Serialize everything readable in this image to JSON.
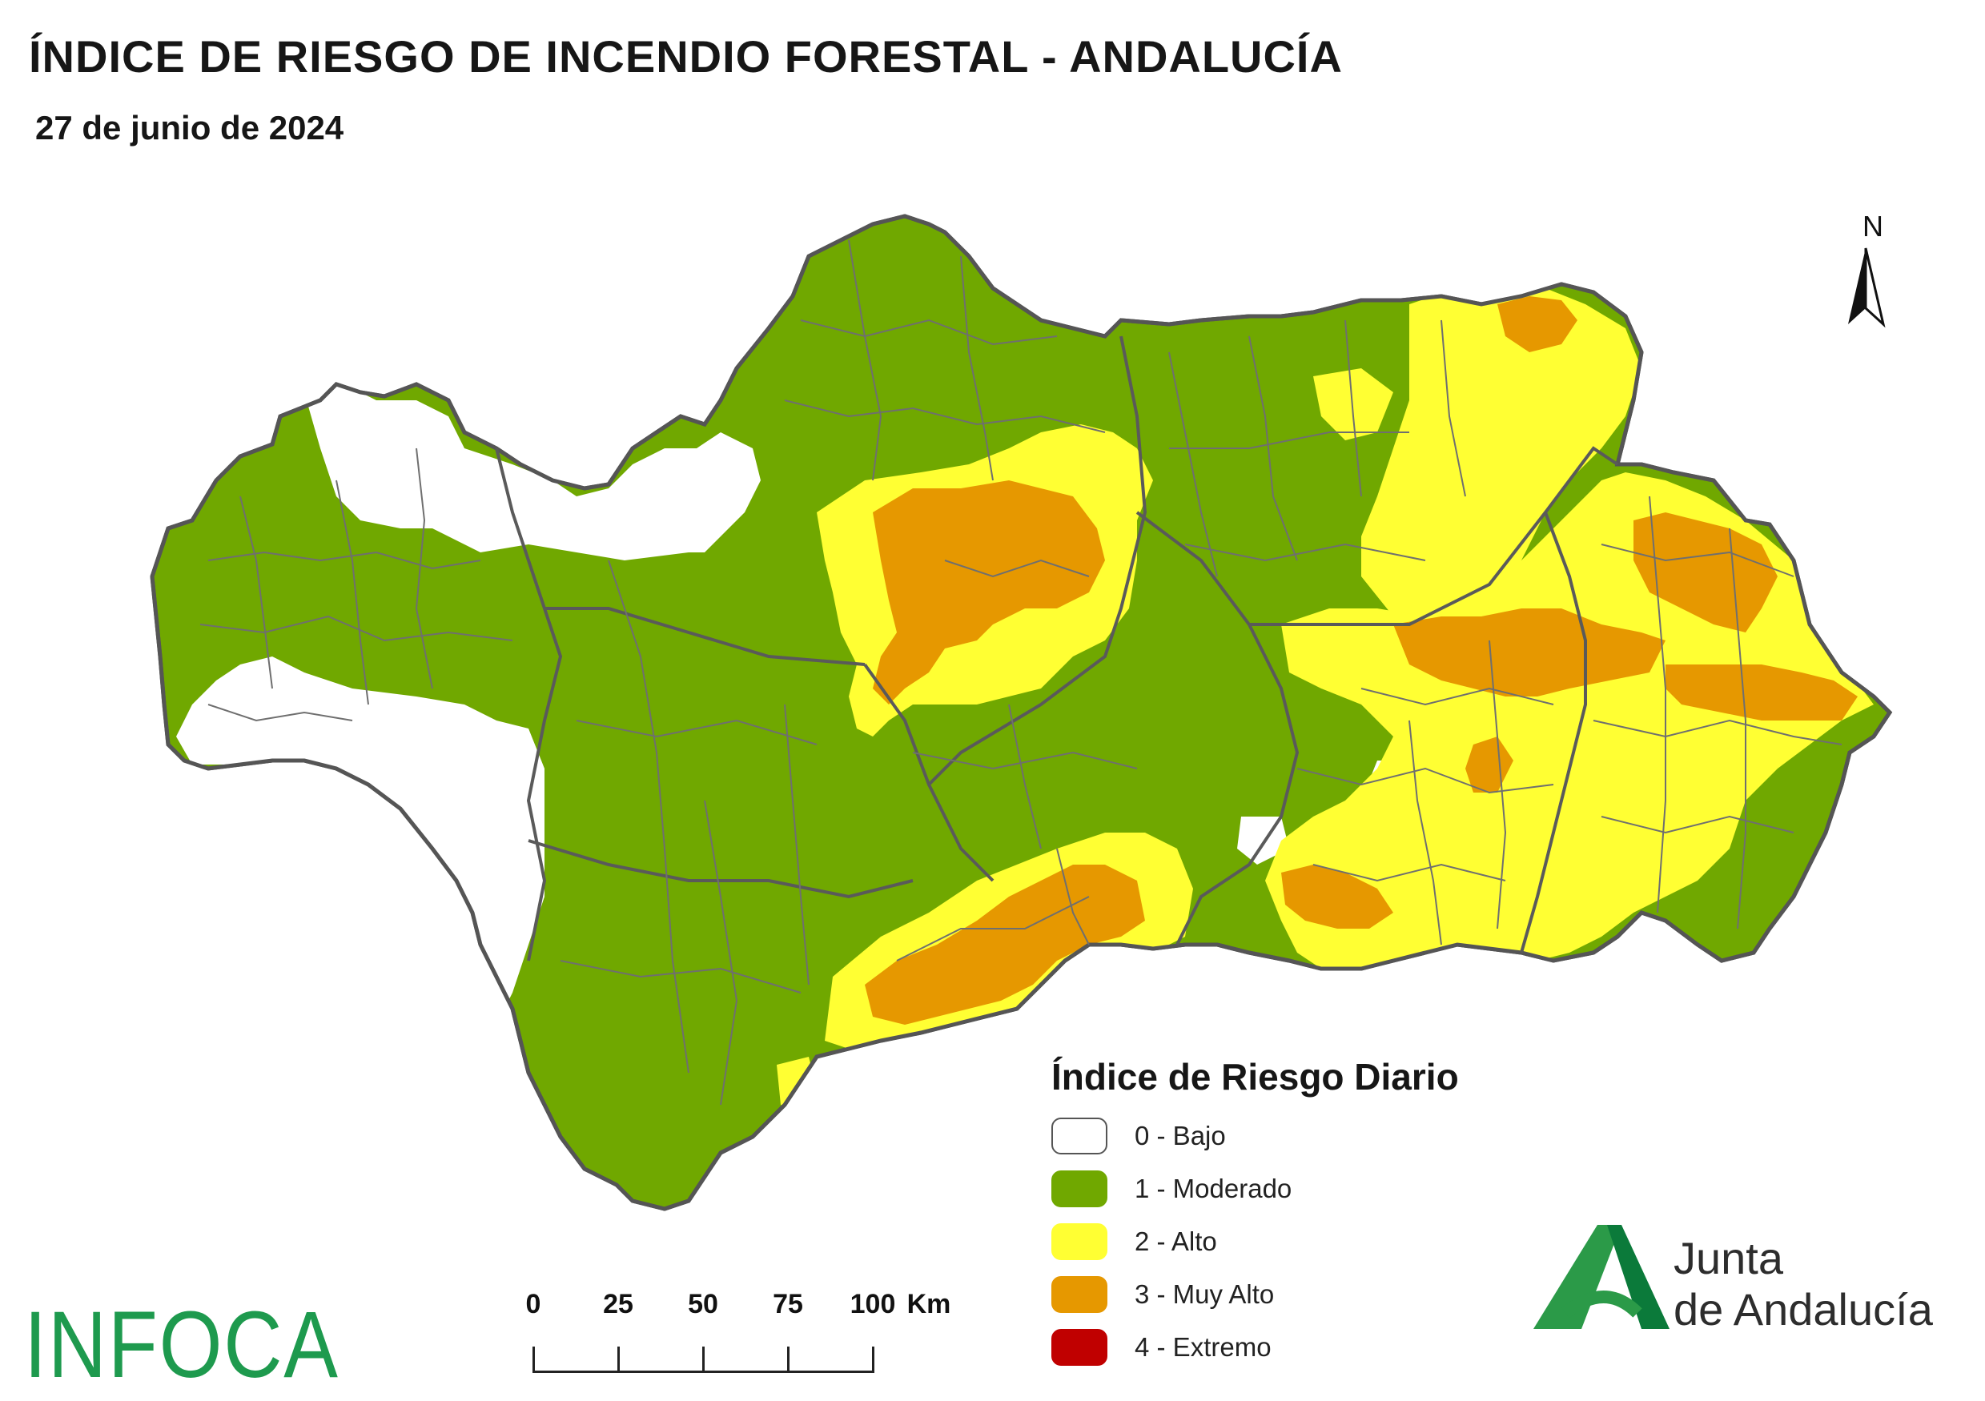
{
  "title": "ÍNDICE DE RIESGO DE INCENDIO FORESTAL - ANDALUCÍA",
  "date": "27 de junio de 2024",
  "north_label": "N",
  "legend": {
    "title": "Índice de Riesgo Diario",
    "items": [
      {
        "label": "0 - Bajo",
        "color": "#ffffff"
      },
      {
        "label": "1 - Moderado",
        "color": "#70a800"
      },
      {
        "label": "2 - Alto",
        "color": "#ffff33"
      },
      {
        "label": "3 - Muy Alto",
        "color": "#e69800"
      },
      {
        "label": "4 - Extremo",
        "color": "#c00000"
      }
    ]
  },
  "scale_bar": {
    "labels": [
      "0",
      "25",
      "50",
      "75",
      "100"
    ],
    "unit": "Km"
  },
  "infoca_logo_text": "INFOCA",
  "junta_logo": {
    "line1": "Junta",
    "line2": "de Andalucía"
  },
  "colors": {
    "bajo": "#ffffff",
    "moderado": "#70a800",
    "alto": "#ffff33",
    "muy_alto": "#e69800",
    "extremo": "#c00000",
    "boundary": "#666666",
    "brand_green": "#1e9a4e"
  }
}
